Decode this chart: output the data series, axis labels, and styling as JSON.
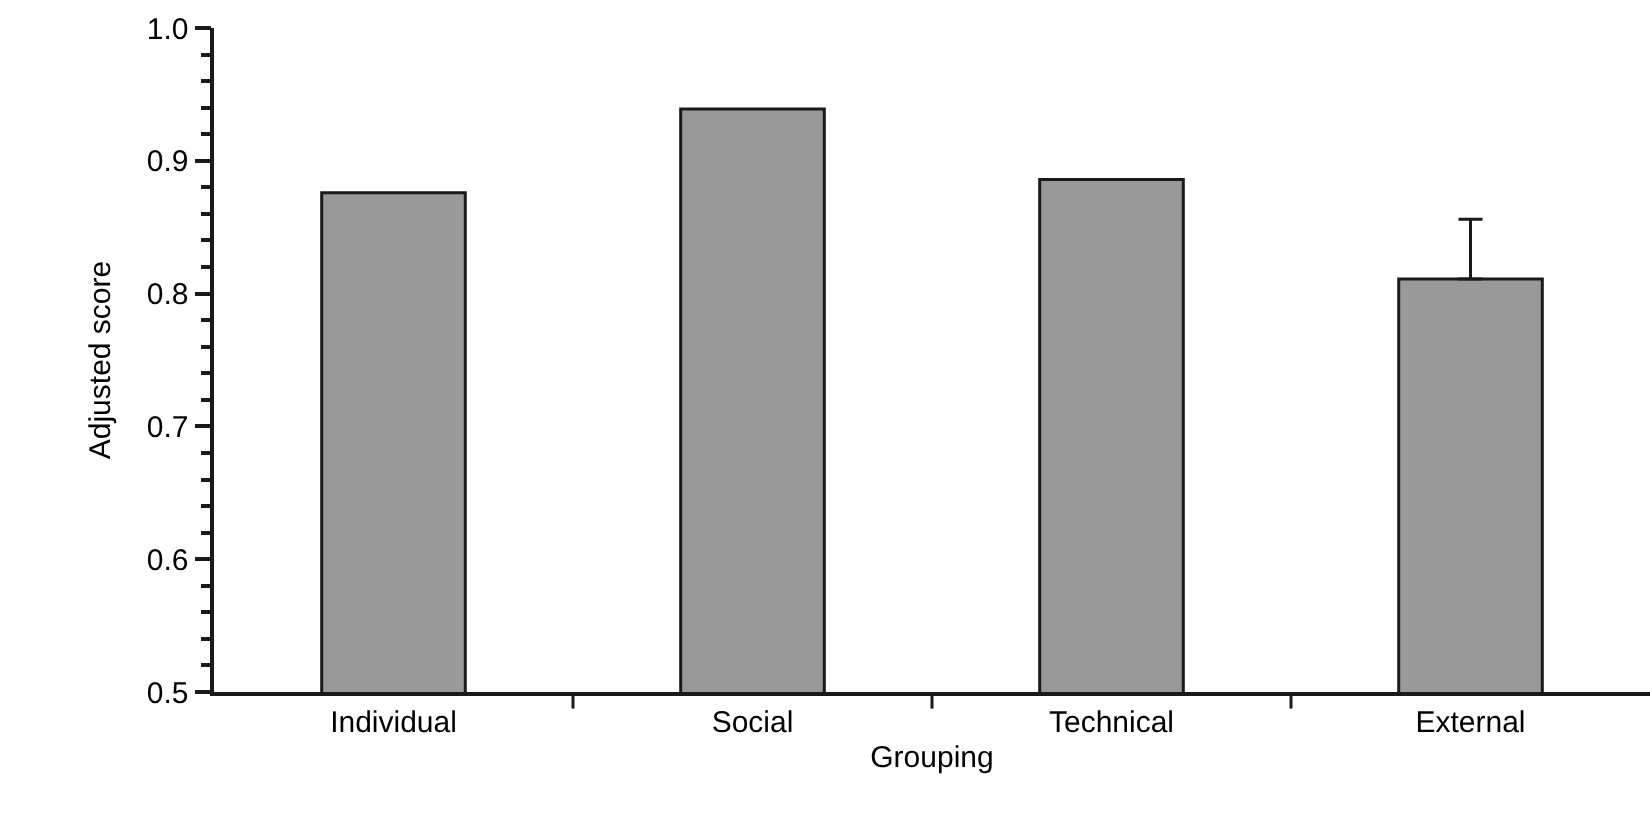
{
  "chart_data": {
    "type": "bar",
    "xlabel": "Grouping",
    "ylabel": "Adjusted score",
    "categories": [
      "Individual",
      "Social",
      "Technical",
      "External"
    ],
    "values": [
      0.876,
      0.939,
      0.886,
      0.811
    ],
    "errors": [
      null,
      null,
      null,
      [
        0.811,
        0.856
      ]
    ],
    "color": "#999999",
    "ylim": [
      0.5,
      1.0
    ],
    "yticks": [
      0.5,
      0.6,
      0.7,
      0.8,
      0.9,
      {
        "value": 1.0,
        "label": "1.0"
      }
    ]
  }
}
